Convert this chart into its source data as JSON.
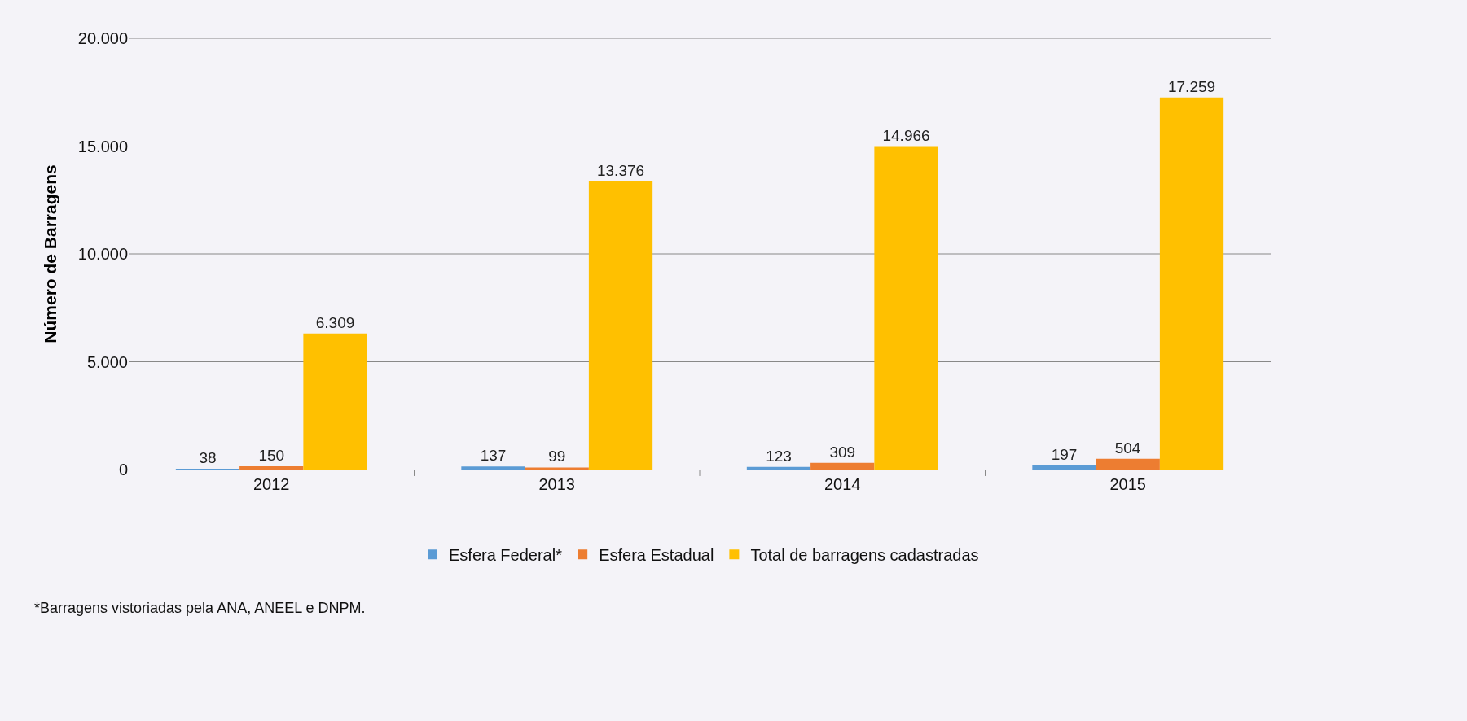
{
  "chart_data": {
    "type": "bar",
    "ylabel": "Número de Barragens",
    "categories": [
      "2012",
      "2013",
      "2014",
      "2015"
    ],
    "series": [
      {
        "name": "Esfera Federal*",
        "color": "#5b9bd5",
        "values": [
          38,
          137,
          123,
          197
        ],
        "value_labels": [
          "38",
          "137",
          "123",
          "197"
        ]
      },
      {
        "name": "Esfera Estadual",
        "color": "#ed7d31",
        "values": [
          150,
          99,
          309,
          504
        ],
        "value_labels": [
          "150",
          "99",
          "309",
          "504"
        ]
      },
      {
        "name": "Total de barragens cadastradas",
        "color": "#ffc000",
        "values": [
          6309,
          13376,
          14966,
          17259
        ],
        "value_labels": [
          "6.309",
          "13.376",
          "14.966",
          "17.259"
        ]
      }
    ],
    "ylim": [
      0,
      20000
    ],
    "yticks": [
      {
        "value": 0,
        "label": "0"
      },
      {
        "value": 5000,
        "label": "5.000"
      },
      {
        "value": 10000,
        "label": "10.000"
      },
      {
        "value": 15000,
        "label": "15.000"
      },
      {
        "value": 20000,
        "label": "20.000"
      }
    ],
    "grid": "y",
    "legend": "bottom",
    "annotations": [
      "*Barragens vistoriadas pela ANA, ANEEL e DNPM."
    ]
  }
}
